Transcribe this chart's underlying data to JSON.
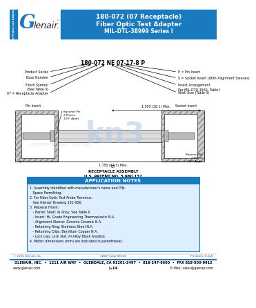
{
  "title_line1": "180-072 (07 Receptacle)",
  "title_line2": "Fiber Optic Test Adapter",
  "title_line3": "MIL-DTL-38999 Series I",
  "header_bg": "#1a7abf",
  "sidebar_bg": "#1a7abf",
  "sidebar_text": "Test Probes and Adapters",
  "logo_g_color": "#1a7abf",
  "part_number_label": "180-072 NE 07-17-8 P",
  "assembly_title_line1": "07",
  "assembly_title_line2": "RECEPTACLE ASSEMBLY",
  "assembly_title_line3": "U.S. PATENT NO. 5,960,137",
  "app_notes_title": "APPLICATION NOTES",
  "app_notes_header_bg": "#1a7abf",
  "app_notes_body_bg": "#ddeeff",
  "note_lines": [
    "1. Assembly identified with manufacturer's name and P/N,",
    "   Space Permitting.",
    "2. For Fiber Optic Test Probe Terminus:",
    "   See Glenair Drawing 101-006.",
    "3. Material Finish:",
    "   - Barrel: Shell: Al Alloy: See Table II",
    "   - Insert: Hi- Grade Engineering Thermoplastic N.A.",
    "   - Alignment Sleeve: Zirconia Ceramic N.A.",
    "   - Retaining Ring: Stainless Steel N.A.",
    "   - Retaining Clips: Beryllium Copper N.A.",
    "   - Lock Cap, Lock Nut: Al Alloy Black Anodize.",
    "4. Metric dimensions (mm) are indicated in parentheses."
  ],
  "footer_copy": "© 2005 Glenair, Inc.",
  "footer_cage": "CAGE Code 06324",
  "footer_printed": "Printed in U.S.A.",
  "footer_main": "GLENAIR, INC.  •  1211 AIR WAY  •  GLENDALE, CA 91201-2497  •  818-247-6000  •  FAX 818-500-9912",
  "footer_web": "www.glenair.com",
  "footer_page": "L-14",
  "footer_email": "E-Mail: sales@glenair.com",
  "left_labels": [
    "Product Series",
    "Base Number",
    "Finish Symbol\n(See Table II)",
    "07 = Receptacle Adapter"
  ],
  "right_labels": [
    "P = Pin Insert",
    "S = Socket Insert (With Alignment Sleeves)",
    "Insert Arrangement\nPer MIL-DTD-1560, Table I",
    "Shell Size (Table II)"
  ],
  "insert_left": "Pin Insert",
  "insert_right": "Socket Insert",
  "bayonet1": "Bayonet Pin\n2 Places\n120° Apart",
  "bayonet2": "Bayonet Pin\n2 Places\n120° Apart",
  "dim1": "1.500 (38.1) Max.",
  "dim2": "1.750 (44.5) Max."
}
